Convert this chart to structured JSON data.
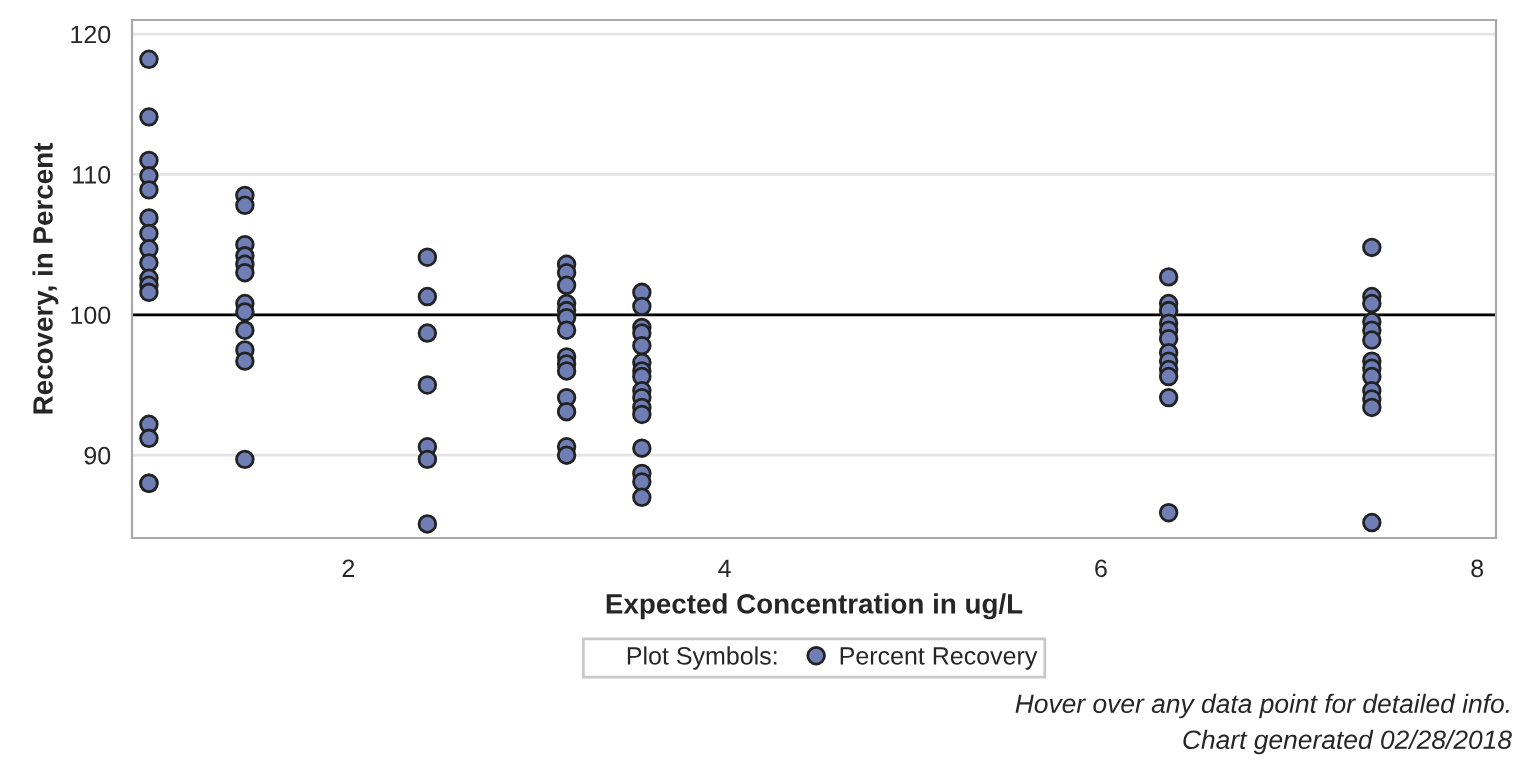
{
  "chart_data": {
    "type": "scatter",
    "xlabel": "Expected Concentration in ug/L",
    "ylabel": "Recovery, in Percent",
    "legend_title": "Plot Symbols:",
    "legend": "bottom",
    "grid": "y",
    "marker": "circle",
    "xlim": [
      0.85,
      8.1
    ],
    "ylim": [
      84.1,
      121
    ],
    "xticks": [
      2,
      4,
      6,
      8
    ],
    "yticks": [
      90,
      100,
      110,
      120
    ],
    "ref_lines": [
      {
        "axis": "y",
        "value": 100,
        "color": "#000000"
      }
    ],
    "series": [
      {
        "name": "Percent Recovery",
        "color": "#6f7fb5",
        "x": [
          0.94,
          0.94,
          0.94,
          0.94,
          0.94,
          0.94,
          0.94,
          0.94,
          0.94,
          0.94,
          0.94,
          0.94,
          0.94,
          0.94,
          0.94,
          0.94,
          1.45,
          1.45,
          1.45,
          1.45,
          1.45,
          1.45,
          1.45,
          1.45,
          1.45,
          1.45,
          1.45,
          1.45,
          2.42,
          2.42,
          2.42,
          2.42,
          2.42,
          2.42,
          2.42,
          3.16,
          3.16,
          3.16,
          3.16,
          3.16,
          3.16,
          3.16,
          3.16,
          3.16,
          3.16,
          3.16,
          3.16,
          3.16,
          3.16,
          3.56,
          3.56,
          3.56,
          3.56,
          3.56,
          3.56,
          3.56,
          3.56,
          3.56,
          3.56,
          3.56,
          3.56,
          3.56,
          3.56,
          3.56,
          3.56,
          6.36,
          6.36,
          6.36,
          6.36,
          6.36,
          6.36,
          6.36,
          6.36,
          6.36,
          6.36,
          6.36,
          6.36,
          7.44,
          7.44,
          7.44,
          7.44,
          7.44,
          7.44,
          7.44,
          7.44,
          7.44,
          7.44,
          7.44,
          7.44,
          7.44
        ],
        "values": [
          118.2,
          114.1,
          111.0,
          109.9,
          108.9,
          106.9,
          105.8,
          104.7,
          103.7,
          102.6,
          102.1,
          101.6,
          92.2,
          91.2,
          88.0,
          88.0,
          108.5,
          107.8,
          105.0,
          104.2,
          103.6,
          103.0,
          100.8,
          100.2,
          98.9,
          97.5,
          96.7,
          89.7,
          104.1,
          101.3,
          98.7,
          95.0,
          90.6,
          89.7,
          85.1,
          103.6,
          103.0,
          102.1,
          100.8,
          100.3,
          99.8,
          98.9,
          97.0,
          96.5,
          96.0,
          94.1,
          93.1,
          90.6,
          90.0,
          101.6,
          100.6,
          99.1,
          98.7,
          97.8,
          96.6,
          96.0,
          95.6,
          94.6,
          94.1,
          93.4,
          92.9,
          90.5,
          88.7,
          88.1,
          87.0,
          102.7,
          100.8,
          100.3,
          99.4,
          98.9,
          98.3,
          97.3,
          96.7,
          96.1,
          95.6,
          94.1,
          85.9,
          104.8,
          101.3,
          100.8,
          99.5,
          98.9,
          98.2,
          96.7,
          96.2,
          95.6,
          94.6,
          94.0,
          93.4,
          85.2
        ]
      }
    ],
    "annotations": [
      "Hover over any data point for detailed info.",
      "Chart generated 02/28/2018"
    ]
  }
}
